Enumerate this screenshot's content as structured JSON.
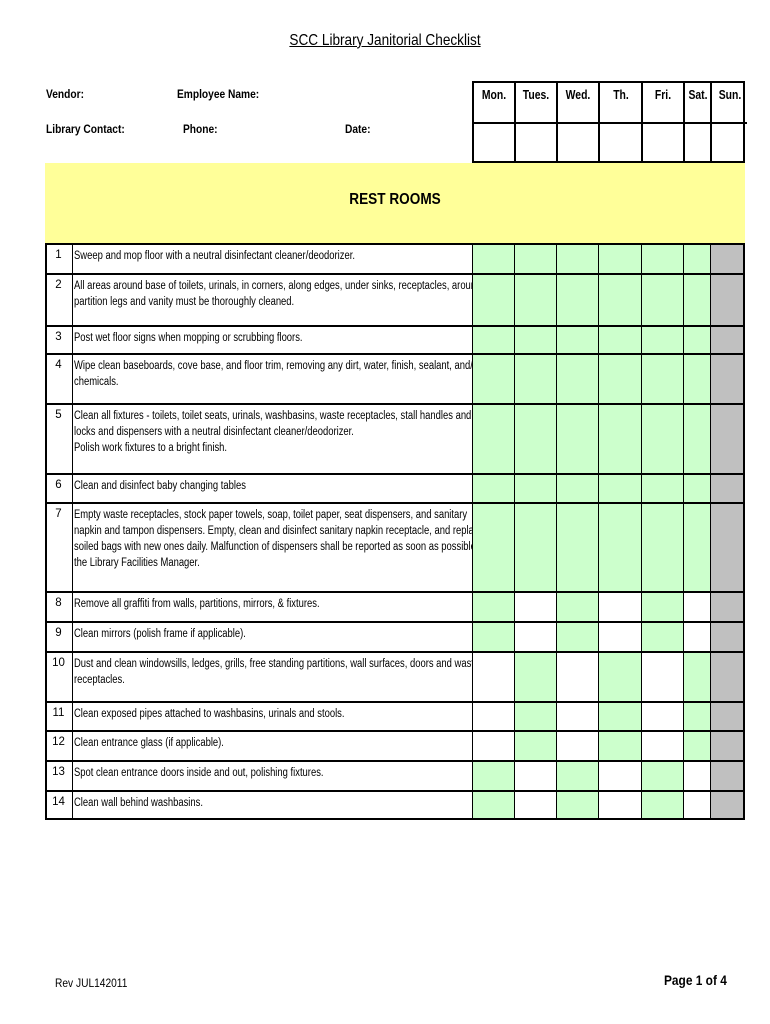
{
  "title": "SCC Library Janitorial Checklist",
  "header": {
    "vendor": "Vendor:",
    "employee": "Employee Name:",
    "contact": "Library Contact:",
    "phone": "Phone:",
    "date": "Date:"
  },
  "days": [
    "Mon.",
    "Tues.",
    "Wed.",
    "Th.",
    "Fri.",
    "Sat.",
    "Sun."
  ],
  "section": "REST ROOMS",
  "colors": {
    "scheduled": "#ccffcc",
    "not_applicable": "#c0c0c0",
    "band": "#ffff99"
  },
  "schedule_legend": "G = scheduled (green), W = blank, X = not applicable (gray)",
  "rows": [
    {
      "num": "1",
      "text": "Sweep and mop floor with a neutral disinfectant cleaner/deodorizer.",
      "cells": "GGGGGGX"
    },
    {
      "num": "2",
      "text": "All areas around base of toilets, urinals, in corners, along edges, under sinks, receptacles, around\npartition legs and vanity must be thoroughly cleaned.",
      "cells": "GGGGGGX"
    },
    {
      "num": "3",
      "text": "Post wet floor signs when mopping or scrubbing floors.",
      "cells": "GGGGGGX"
    },
    {
      "num": "4",
      "text": "Wipe clean baseboards, cove base, and floor trim, removing any dirt, water, finish, sealant, and/or\nchemicals.",
      "cells": "GGGGGGX"
    },
    {
      "num": "5",
      "text": "Clean all fixtures - toilets, toilet seats, urinals, washbasins, waste receptacles, stall handles and\nlocks and dispensers with a neutral disinfectant cleaner/deodorizer.\nPolish work fixtures to a bright finish.",
      "cells": "GGGGGGX"
    },
    {
      "num": "6",
      "text": "Clean and disinfect baby changing tables",
      "cells": "GGGGGGX"
    },
    {
      "num": "7",
      "text": "Empty waste receptacles, stock paper towels, soap, toilet paper, seat dispensers, and sanitary\nnapkin and tampon dispensers. Empty, clean and disinfect sanitary napkin receptacle, and replace\nsoiled bags with new ones daily. Malfunction of dispensers shall be reported as soon as possible to\nthe Library Facilities Manager.",
      "cells": "GGGGGGX"
    },
    {
      "num": "8",
      "text": "Remove all graffiti from walls, partitions, mirrors, & fixtures.",
      "cells": "GWGWGWX"
    },
    {
      "num": "9",
      "text": "Clean mirrors (polish frame if applicable).",
      "cells": "GWGWGWX"
    },
    {
      "num": "10",
      "text": "Dust and clean windowsills, ledges, grills, free standing partitions, wall surfaces, doors and waste\nreceptacles.",
      "cells": "WGWGWGX"
    },
    {
      "num": "11",
      "text": "Clean exposed pipes attached to washbasins, urinals and stools.",
      "cells": "WGWGWGX"
    },
    {
      "num": "12",
      "text": "Clean entrance glass (if applicable).",
      "cells": "WGWGWGX"
    },
    {
      "num": "13",
      "text": "Spot clean entrance doors inside and out, polishing fixtures.",
      "cells": "GWGWGWX"
    },
    {
      "num": "14",
      "text": "Clean wall behind washbasins.",
      "cells": "GWGWGWX"
    }
  ],
  "footer": {
    "rev": "Rev JUL142011",
    "page": "Page 1 of 4"
  }
}
